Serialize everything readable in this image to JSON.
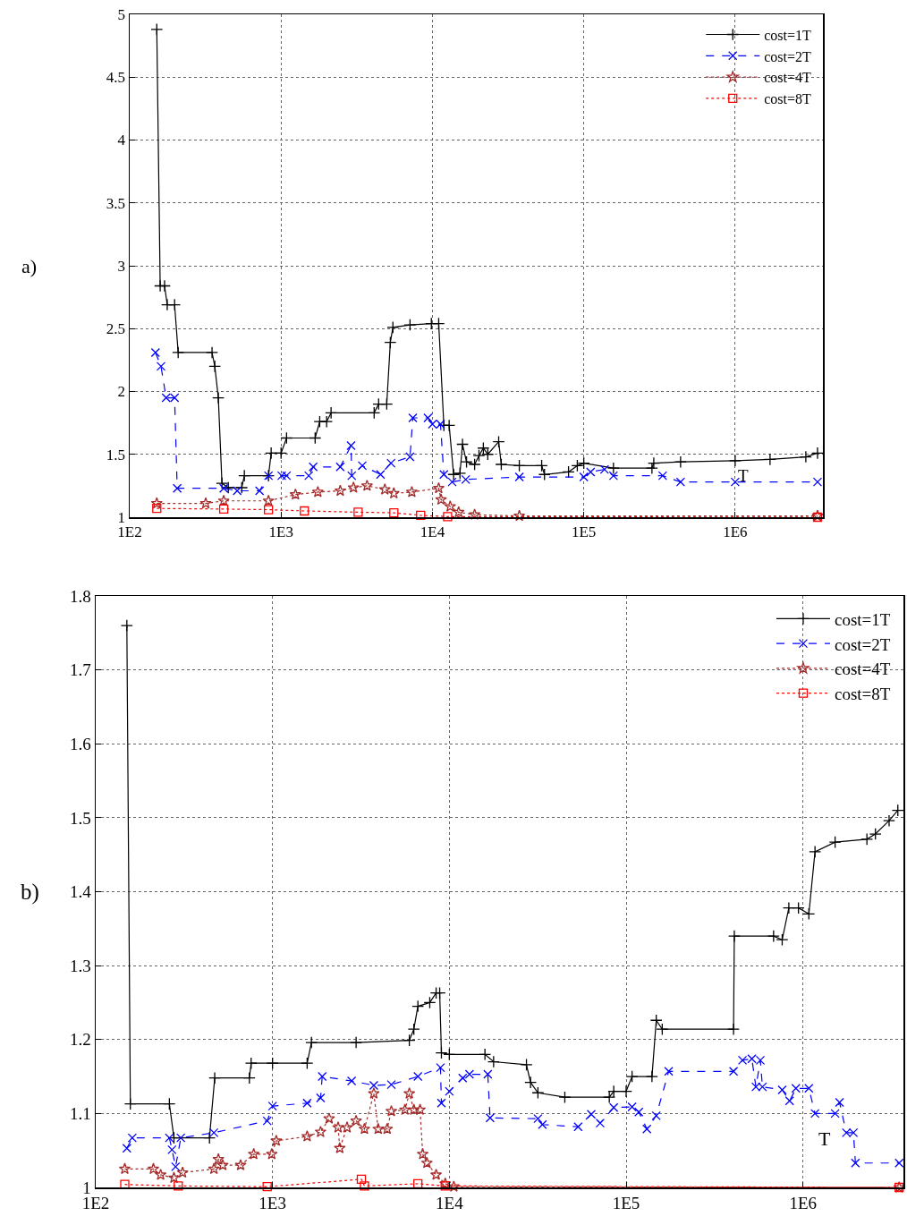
{
  "chart_data": [
    {
      "type": "line",
      "annotations": [
        "a)",
        "T"
      ],
      "log": "x",
      "grid": true,
      "legend": "top right",
      "xlim": [
        100,
        3800000
      ],
      "ylim": [
        1,
        5
      ],
      "xticks": [
        {
          "value": 100,
          "label": "1E2"
        },
        {
          "value": 1000,
          "label": "1E3"
        },
        {
          "value": 10000,
          "label": "1E4"
        },
        {
          "value": 100000,
          "label": "1E5"
        },
        {
          "value": 1000000,
          "label": "1E6"
        }
      ],
      "yticks": [
        1,
        1.5,
        2,
        2.5,
        3,
        3.5,
        4,
        4.5,
        5
      ],
      "series": [
        {
          "name": "cost=1T",
          "color": "#000000",
          "marker": "cross",
          "line_style": "solid",
          "x": [
            151,
            159,
            170,
            177,
            198,
            209,
            350,
            365,
            385,
            407,
            448,
            550,
            572,
            826,
            860,
            1000,
            1087,
            1679,
            1800,
            2000,
            2140,
            4120,
            4410,
            4990,
            5270,
            5480,
            7110,
            9840,
            11000,
            11900,
            12900,
            13800,
            15200,
            15800,
            16800,
            19000,
            20300,
            21700,
            23200,
            27400,
            28500,
            37500,
            52700,
            55000,
            79300,
            90600,
            100000,
            157000,
            282000,
            290000,
            436000,
            1000000,
            1700000,
            2930000,
            3500000
          ],
          "values": [
            4.88,
            2.84,
            2.84,
            2.69,
            2.69,
            2.31,
            2.31,
            2.2,
            1.95,
            1.27,
            1.235,
            1.235,
            1.33,
            1.33,
            1.51,
            1.51,
            1.63,
            1.63,
            1.76,
            1.76,
            1.83,
            1.83,
            1.9,
            1.9,
            2.39,
            2.51,
            2.53,
            2.54,
            2.54,
            1.73,
            1.73,
            1.34,
            1.35,
            1.58,
            1.44,
            1.42,
            1.49,
            1.55,
            1.5,
            1.6,
            1.42,
            1.41,
            1.41,
            1.34,
            1.36,
            1.41,
            1.43,
            1.39,
            1.39,
            1.43,
            1.44,
            1.45,
            1.46,
            1.48,
            1.51
          ]
        },
        {
          "name": "cost=2T",
          "color": "#0000ff",
          "marker": "x",
          "line_style": "dashed",
          "x": [
            148,
            161,
            174,
            198,
            206,
            418,
            513,
            721,
            826,
            1010,
            1087,
            1524,
            1630,
            2460,
            2900,
            2930,
            3440,
            4540,
            5330,
            7110,
            7420,
            9340,
            10000,
            11300,
            11900,
            13500,
            16600,
            37500,
            100000,
            111000,
            137000,
            157000,
            332000,
            436000,
            1000000,
            3500000
          ],
          "values": [
            2.31,
            2.2,
            1.95,
            1.95,
            1.23,
            1.23,
            1.21,
            1.21,
            1.33,
            1.33,
            1.33,
            1.33,
            1.4,
            1.4,
            1.57,
            1.33,
            1.41,
            1.34,
            1.43,
            1.48,
            1.79,
            1.79,
            1.74,
            1.74,
            1.34,
            1.28,
            1.3,
            1.32,
            1.32,
            1.36,
            1.38,
            1.33,
            1.33,
            1.28,
            1.28,
            1.28
          ]
        },
        {
          "name": "cost=4T",
          "color": "#a52a2a",
          "marker": "star",
          "line_style": "dotted",
          "x": [
            151,
            318,
            418,
            826,
            1245,
            1750,
            2460,
            3010,
            3700,
            4850,
            5560,
            7310,
            11000,
            11400,
            13100,
            14900,
            19000,
            37500,
            3500000
          ],
          "values": [
            1.11,
            1.11,
            1.13,
            1.13,
            1.18,
            1.2,
            1.21,
            1.235,
            1.25,
            1.22,
            1.19,
            1.2,
            1.23,
            1.14,
            1.085,
            1.04,
            1.02,
            1.01,
            1.01
          ]
        },
        {
          "name": "cost=8T",
          "color": "#ff0000",
          "marker": "square",
          "line_style": "dotted",
          "x": [
            151,
            418,
            826,
            1426,
            3230,
            5560,
            8360,
            12600,
            3500000
          ],
          "values": [
            1.07,
            1.065,
            1.06,
            1.05,
            1.04,
            1.035,
            1.015,
            1.005,
            1.0
          ]
        }
      ]
    },
    {
      "type": "line",
      "annotations": [
        "b)",
        "T"
      ],
      "log": "x",
      "grid": true,
      "legend": "top right",
      "xlim": [
        100,
        3700000
      ],
      "ylim": [
        1,
        1.8
      ],
      "xticks": [
        {
          "value": 100,
          "label": "1E2"
        },
        {
          "value": 1000,
          "label": "1E3"
        },
        {
          "value": 10000,
          "label": "1E4"
        },
        {
          "value": 100000,
          "label": "1E5"
        },
        {
          "value": 1000000,
          "label": "1E6"
        }
      ],
      "yticks": [
        1,
        1.1,
        1.2,
        1.3,
        1.4,
        1.5,
        1.6,
        1.7,
        1.8
      ],
      "series": [
        {
          "name": "cost=1T",
          "color": "#000000",
          "marker": "cross",
          "line_style": "solid",
          "x": [
            150,
            157,
            261,
            277,
            440,
            471,
            740,
            757,
            1000,
            1570,
            1660,
            2970,
            5940,
            6300,
            6640,
            7750,
            8420,
            8820,
            9020,
            10000,
            15900,
            17800,
            27300,
            28800,
            31700,
            45000,
            80300,
            85100,
            100000,
            108000,
            140000,
            148000,
            160000,
            405000,
            409000,
            682000,
            763000,
            832000,
            943000,
            1080000,
            1170000,
            1520000,
            2300000,
            2570000,
            3070000,
            3440000
          ],
          "values": [
            1.76,
            1.113,
            1.113,
            1.067,
            1.067,
            1.148,
            1.148,
            1.168,
            1.168,
            1.168,
            1.196,
            1.196,
            1.199,
            1.214,
            1.245,
            1.25,
            1.263,
            1.263,
            1.182,
            1.18,
            1.18,
            1.17,
            1.166,
            1.142,
            1.128,
            1.122,
            1.122,
            1.13,
            1.13,
            1.15,
            1.15,
            1.226,
            1.214,
            1.214,
            1.34,
            1.34,
            1.335,
            1.378,
            1.378,
            1.37,
            1.454,
            1.467,
            1.471,
            1.478,
            1.496,
            1.51
          ]
        },
        {
          "name": "cost=2T",
          "color": "#0000ff",
          "marker": "x",
          "line_style": "dashed",
          "x": [
            150,
            161,
            261,
            270,
            283,
            303,
            466,
            933,
            1000,
            1570,
            1870,
            1910,
            2800,
            3740,
            4700,
            6640,
            8910,
            9020,
            10000,
            11900,
            13000,
            16500,
            17000,
            31700,
            33600,
            53500,
            63500,
            71300,
            85100,
            108000,
            118000,
            131000,
            148000,
            174000,
            405000,
            455000,
            514000,
            542000,
            574000,
            590000,
            763000,
            840000,
            912000,
            1080000,
            1170000,
            1520000,
            1610000,
            1760000,
            1930000,
            1980000,
            3500000
          ],
          "values": [
            1.053,
            1.067,
            1.067,
            1.051,
            1.028,
            1.067,
            1.074,
            1.09,
            1.11,
            1.114,
            1.121,
            1.15,
            1.144,
            1.138,
            1.139,
            1.15,
            1.162,
            1.114,
            1.13,
            1.148,
            1.153,
            1.153,
            1.094,
            1.093,
            1.085,
            1.082,
            1.099,
            1.087,
            1.108,
            1.109,
            1.102,
            1.079,
            1.097,
            1.157,
            1.157,
            1.172,
            1.174,
            1.136,
            1.172,
            1.136,
            1.132,
            1.117,
            1.134,
            1.134,
            1.1,
            1.1,
            1.115,
            1.074,
            1.074,
            1.033,
            1.033
          ]
        },
        {
          "name": "cost=4T",
          "color": "#a52a2a",
          "marker": "star",
          "line_style": "dotted",
          "x": [
            146,
            212,
            233,
            277,
            310,
            466,
            494,
            523,
            660,
            783,
            990,
            1050,
            1570,
            1870,
            2090,
            2350,
            2400,
            2640,
            2970,
            3310,
            3740,
            3960,
            4450,
            4700,
            5610,
            5940,
            6300,
            6830,
            7070,
            7470,
            8420,
            9480,
            10600,
            3500000
          ],
          "values": [
            1.025,
            1.025,
            1.017,
            1.013,
            1.02,
            1.025,
            1.038,
            1.03,
            1.03,
            1.045,
            1.045,
            1.063,
            1.069,
            1.075,
            1.093,
            1.081,
            1.053,
            1.081,
            1.09,
            1.079,
            1.127,
            1.079,
            1.079,
            1.103,
            1.105,
            1.127,
            1.105,
            1.105,
            1.045,
            1.033,
            1.017,
            1.005,
            1.001,
            1.0
          ]
        },
        {
          "name": "cost=8T",
          "color": "#ff0000",
          "marker": "square",
          "line_style": "dotted",
          "x": [
            146,
            293,
            933,
            3180,
            3310,
            6640,
            9480,
            3500000
          ],
          "values": [
            1.004,
            1.002,
            1.001,
            1.011,
            1.002,
            1.005,
            1.002,
            1.0
          ]
        }
      ]
    }
  ]
}
